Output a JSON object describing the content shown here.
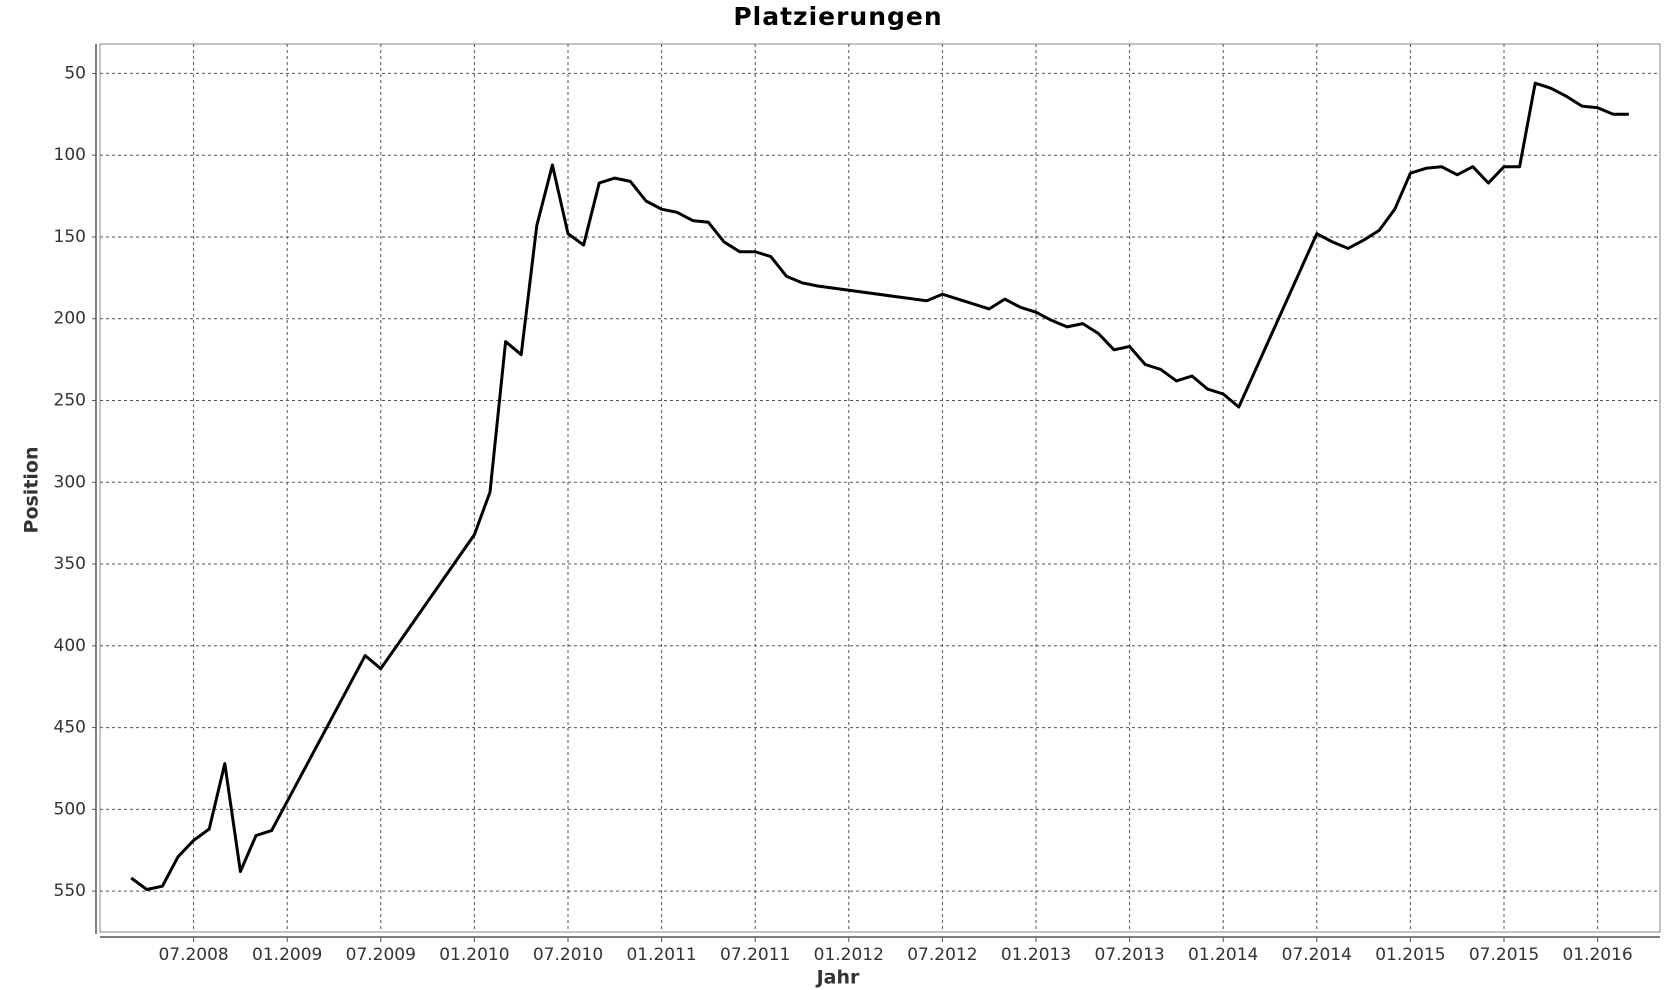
{
  "chart_data": {
    "type": "line",
    "title": "Platzierungen",
    "x_label": "Jahr",
    "y_label": "Position",
    "x": [
      "2008-03",
      "2008-04",
      "2008-05",
      "2008-06",
      "2008-07",
      "2008-08",
      "2008-09",
      "2008-10",
      "2008-11",
      "2008-12",
      "2009-06",
      "2009-07",
      "2010-01",
      "2010-02",
      "2010-03",
      "2010-04",
      "2010-05",
      "2010-06",
      "2010-07",
      "2010-08",
      "2010-09",
      "2010-10",
      "2010-11",
      "2010-12",
      "2011-01",
      "2011-02",
      "2011-03",
      "2011-04",
      "2011-05",
      "2011-06",
      "2011-07",
      "2011-08",
      "2011-09",
      "2011-10",
      "2011-11",
      "2012-06",
      "2012-07",
      "2012-10",
      "2012-11",
      "2012-12",
      "2013-01",
      "2013-02",
      "2013-03",
      "2013-04",
      "2013-05",
      "2013-06",
      "2013-07",
      "2013-08",
      "2013-09",
      "2013-10",
      "2013-11",
      "2013-12",
      "2014-01",
      "2014-02",
      "2014-07",
      "2014-08",
      "2014-09",
      "2014-10",
      "2014-11",
      "2014-12",
      "2015-01",
      "2015-02",
      "2015-03",
      "2015-04",
      "2015-05",
      "2015-06",
      "2015-07",
      "2015-08",
      "2015-09",
      "2015-10",
      "2015-11",
      "2015-12",
      "2016-01",
      "2016-02",
      "2016-03"
    ],
    "series": [
      {
        "name": "Position",
        "color": "#000000",
        "values": [
          542,
          549,
          547,
          529,
          519,
          512,
          472,
          538,
          516,
          513,
          406,
          414,
          332,
          306,
          214,
          222,
          143,
          106,
          148,
          155,
          117,
          114,
          116,
          128,
          133,
          135,
          140,
          141,
          153,
          159,
          159,
          162,
          174,
          178,
          180,
          189,
          185,
          194,
          188,
          193,
          196,
          201,
          205,
          203,
          209,
          219,
          217,
          228,
          231,
          238,
          235,
          243,
          246,
          254,
          148,
          153,
          157,
          152,
          146,
          133,
          111,
          108,
          107,
          112,
          107,
          117,
          107,
          107,
          56,
          59,
          64,
          70,
          71,
          75,
          75
        ]
      }
    ],
    "xlim": [
      "2008-01",
      "2016-05"
    ],
    "xticks": [
      {
        "value": "2008-07",
        "label": "07.2008"
      },
      {
        "value": "2009-01",
        "label": "01.2009"
      },
      {
        "value": "2009-07",
        "label": "07.2009"
      },
      {
        "value": "2010-01",
        "label": "01.2010"
      },
      {
        "value": "2010-07",
        "label": "07.2010"
      },
      {
        "value": "2011-01",
        "label": "01.2011"
      },
      {
        "value": "2011-07",
        "label": "07.2011"
      },
      {
        "value": "2012-01",
        "label": "01.2012"
      },
      {
        "value": "2012-07",
        "label": "07.2012"
      },
      {
        "value": "2013-01",
        "label": "01.2013"
      },
      {
        "value": "2013-07",
        "label": "07.2013"
      },
      {
        "value": "2014-01",
        "label": "01.2014"
      },
      {
        "value": "2014-07",
        "label": "07.2014"
      },
      {
        "value": "2015-01",
        "label": "01.2015"
      },
      {
        "value": "2015-07",
        "label": "07.2015"
      },
      {
        "value": "2016-01",
        "label": "01.2016"
      }
    ],
    "ylim": [
      32,
      575
    ],
    "y_inverted": true,
    "yticks": [
      50,
      100,
      150,
      200,
      250,
      300,
      350,
      400,
      450,
      500,
      550
    ],
    "grid": true
  }
}
